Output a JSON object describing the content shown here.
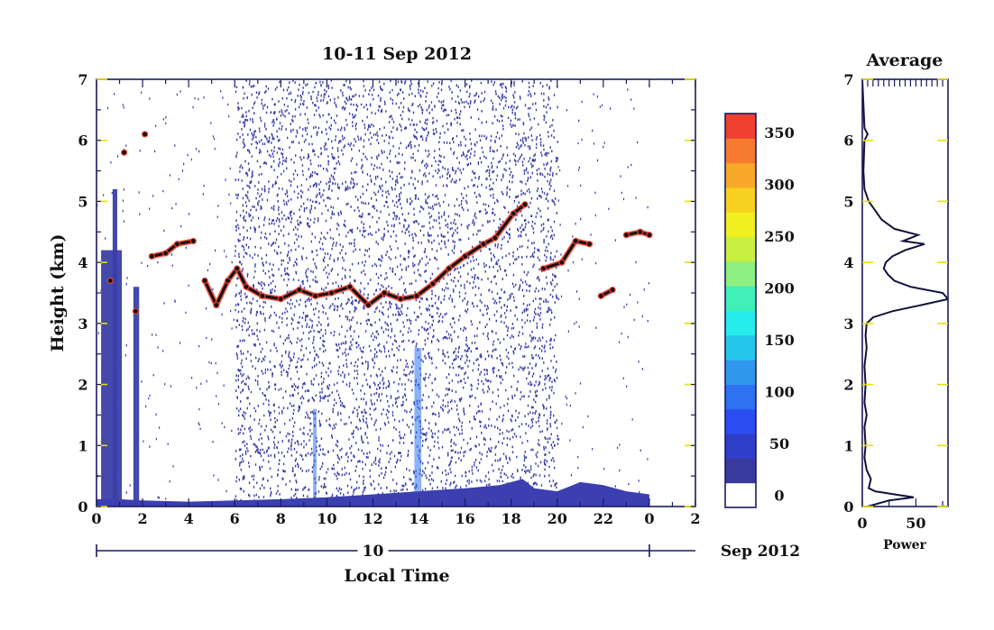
{
  "colors": {
    "axis": "#1a1a5e",
    "ytick": "#e8e000",
    "noise": "#3a3fa8",
    "surface": "#3b3fb0",
    "colorbar": [
      "#ffffff",
      "#3a3a9e",
      "#2f3fc8",
      "#2b4cf0",
      "#2e72f2",
      "#2f98ec",
      "#24c7ea",
      "#27ecec",
      "#40f0b8",
      "#8ef080",
      "#c8f040",
      "#f0f020",
      "#f8d020",
      "#f8a828",
      "#f87a30",
      "#f04030"
    ]
  },
  "chart_data": [
    {
      "type": "heatmap",
      "title": "10-11 Sep 2012",
      "xlabel": "Local Time",
      "ylabel": "Height (km)",
      "x_ticks": [
        "0",
        "2",
        "4",
        "6",
        "8",
        "10",
        "12",
        "14",
        "16",
        "18",
        "20",
        "22",
        "0",
        "2"
      ],
      "x_range_hours": [
        0,
        26
      ],
      "y_ticks": [
        "0",
        "1",
        "2",
        "3",
        "4",
        "5",
        "6",
        "7"
      ],
      "ylim_km": [
        0,
        7
      ],
      "date_bar": {
        "label": "10",
        "suffix": "Sep 2012",
        "start_hour": 0,
        "end_hour": 24
      },
      "colorbar": {
        "tick_labels": [
          "0",
          "50",
          "100",
          "150",
          "200",
          "250",
          "300",
          "350"
        ],
        "tick_values": [
          0,
          50,
          100,
          150,
          200,
          250,
          300,
          350
        ],
        "range": [
          0,
          380
        ]
      },
      "noise_region_hours": [
        6,
        20
      ],
      "surface_layer": [
        {
          "t": 0.0,
          "h": 0.12
        },
        {
          "t": 1.0,
          "h": 0.12
        },
        {
          "t": 2.0,
          "h": 0.1
        },
        {
          "t": 4.0,
          "h": 0.08
        },
        {
          "t": 6.0,
          "h": 0.1
        },
        {
          "t": 8.0,
          "h": 0.12
        },
        {
          "t": 10.0,
          "h": 0.15
        },
        {
          "t": 12.0,
          "h": 0.2
        },
        {
          "t": 14.0,
          "h": 0.25
        },
        {
          "t": 16.0,
          "h": 0.3
        },
        {
          "t": 17.5,
          "h": 0.35
        },
        {
          "t": 18.5,
          "h": 0.45
        },
        {
          "t": 19.0,
          "h": 0.3
        },
        {
          "t": 20.0,
          "h": 0.25
        },
        {
          "t": 21.0,
          "h": 0.4
        },
        {
          "t": 22.0,
          "h": 0.35
        },
        {
          "t": 23.0,
          "h": 0.25
        },
        {
          "t": 24.0,
          "h": 0.2
        }
      ],
      "inversion_layer": [
        {
          "t": 0.6,
          "h": 3.7
        },
        {
          "t": 1.2,
          "h": 5.8
        },
        {
          "t": 1.7,
          "h": 3.2
        },
        {
          "t": 2.1,
          "h": 6.1
        },
        {
          "t": 2.4,
          "h": 4.1
        },
        {
          "t": 3.0,
          "h": 4.15
        },
        {
          "t": 3.5,
          "h": 4.3
        },
        {
          "t": 4.2,
          "h": 4.35
        },
        {
          "t": 4.7,
          "h": 3.7
        },
        {
          "t": 5.2,
          "h": 3.3
        },
        {
          "t": 5.7,
          "h": 3.7
        },
        {
          "t": 6.1,
          "h": 3.9
        },
        {
          "t": 6.5,
          "h": 3.6
        },
        {
          "t": 7.2,
          "h": 3.45
        },
        {
          "t": 8.0,
          "h": 3.4
        },
        {
          "t": 8.8,
          "h": 3.55
        },
        {
          "t": 9.5,
          "h": 3.45
        },
        {
          "t": 10.2,
          "h": 3.5
        },
        {
          "t": 11.0,
          "h": 3.6
        },
        {
          "t": 11.8,
          "h": 3.3
        },
        {
          "t": 12.5,
          "h": 3.5
        },
        {
          "t": 13.2,
          "h": 3.4
        },
        {
          "t": 13.9,
          "h": 3.45
        },
        {
          "t": 14.6,
          "h": 3.65
        },
        {
          "t": 15.3,
          "h": 3.9
        },
        {
          "t": 16.0,
          "h": 4.1
        },
        {
          "t": 16.8,
          "h": 4.3
        },
        {
          "t": 17.3,
          "h": 4.4
        },
        {
          "t": 18.1,
          "h": 4.8
        },
        {
          "t": 18.6,
          "h": 4.95
        },
        {
          "t": 19.4,
          "h": 3.9
        },
        {
          "t": 20.2,
          "h": 4.0
        },
        {
          "t": 20.8,
          "h": 4.35
        },
        {
          "t": 21.4,
          "h": 4.3
        },
        {
          "t": 21.9,
          "h": 3.45
        },
        {
          "t": 22.4,
          "h": 3.55
        },
        {
          "t": 23.0,
          "h": 4.45
        },
        {
          "t": 23.6,
          "h": 4.5
        },
        {
          "t": 24.0,
          "h": 4.45
        }
      ],
      "legend": "none",
      "grid": false
    },
    {
      "type": "line",
      "title": "Average",
      "xlabel": "Power",
      "x_ticks": [
        "0",
        "50"
      ],
      "xlim": [
        0,
        80
      ],
      "y_ticks": [
        "0",
        "1",
        "2",
        "3",
        "4",
        "5",
        "6",
        "7"
      ],
      "ylim_km": [
        0,
        7
      ],
      "profile": [
        {
          "h": 0.0,
          "p": 5
        },
        {
          "h": 0.1,
          "p": 25
        },
        {
          "h": 0.15,
          "p": 48
        },
        {
          "h": 0.2,
          "p": 30
        },
        {
          "h": 0.25,
          "p": 12
        },
        {
          "h": 0.3,
          "p": 6
        },
        {
          "h": 0.45,
          "p": 8
        },
        {
          "h": 0.6,
          "p": 4
        },
        {
          "h": 0.8,
          "p": 2
        },
        {
          "h": 1.0,
          "p": 3
        },
        {
          "h": 1.3,
          "p": 2
        },
        {
          "h": 1.5,
          "p": 4
        },
        {
          "h": 1.7,
          "p": 2
        },
        {
          "h": 2.0,
          "p": 3
        },
        {
          "h": 2.3,
          "p": 2
        },
        {
          "h": 2.6,
          "p": 4
        },
        {
          "h": 2.8,
          "p": 3
        },
        {
          "h": 3.0,
          "p": 4
        },
        {
          "h": 3.1,
          "p": 10
        },
        {
          "h": 3.2,
          "p": 28
        },
        {
          "h": 3.3,
          "p": 55
        },
        {
          "h": 3.4,
          "p": 80
        },
        {
          "h": 3.5,
          "p": 75
        },
        {
          "h": 3.6,
          "p": 45
        },
        {
          "h": 3.7,
          "p": 30
        },
        {
          "h": 3.8,
          "p": 24
        },
        {
          "h": 3.9,
          "p": 20
        },
        {
          "h": 4.0,
          "p": 22
        },
        {
          "h": 4.1,
          "p": 28
        },
        {
          "h": 4.2,
          "p": 40
        },
        {
          "h": 4.3,
          "p": 58
        },
        {
          "h": 4.35,
          "p": 38
        },
        {
          "h": 4.45,
          "p": 52
        },
        {
          "h": 4.55,
          "p": 30
        },
        {
          "h": 4.7,
          "p": 18
        },
        {
          "h": 4.85,
          "p": 12
        },
        {
          "h": 5.0,
          "p": 6
        },
        {
          "h": 5.2,
          "p": 2
        },
        {
          "h": 5.5,
          "p": 1
        },
        {
          "h": 6.0,
          "p": 2
        },
        {
          "h": 6.1,
          "p": 5
        },
        {
          "h": 6.2,
          "p": 2
        },
        {
          "h": 7.0,
          "p": 0
        }
      ]
    }
  ]
}
